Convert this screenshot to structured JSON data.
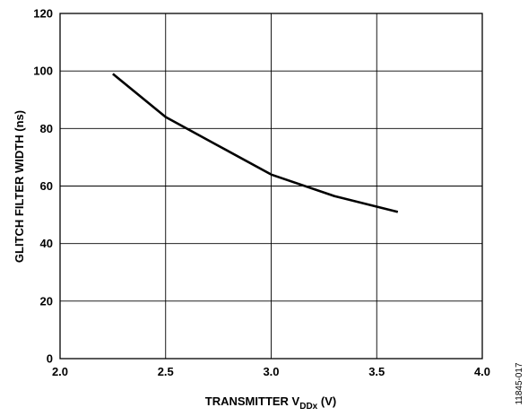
{
  "chart_data": {
    "type": "line",
    "xlabel": {
      "prefix": "TRANSMITTER V",
      "subscript": "DDx",
      "suffix": " (V)"
    },
    "ylabel": "GLITCH FILTER WIDTH (ns)",
    "xlim": [
      2.0,
      4.0
    ],
    "ylim": [
      0,
      120
    ],
    "x_ticks": [
      "2.0",
      "2.5",
      "3.0",
      "3.5",
      "4.0"
    ],
    "y_ticks": [
      "0",
      "20",
      "40",
      "60",
      "80",
      "100",
      "120"
    ],
    "grid": true,
    "series": [
      {
        "x": [
          2.25,
          2.5,
          2.75,
          3.0,
          3.3,
          3.6
        ],
        "y": [
          99,
          84,
          74,
          64,
          56.5,
          51
        ]
      }
    ],
    "line_color": "#000000",
    "grid_color": "#000000"
  },
  "figure_id": "11845-017"
}
